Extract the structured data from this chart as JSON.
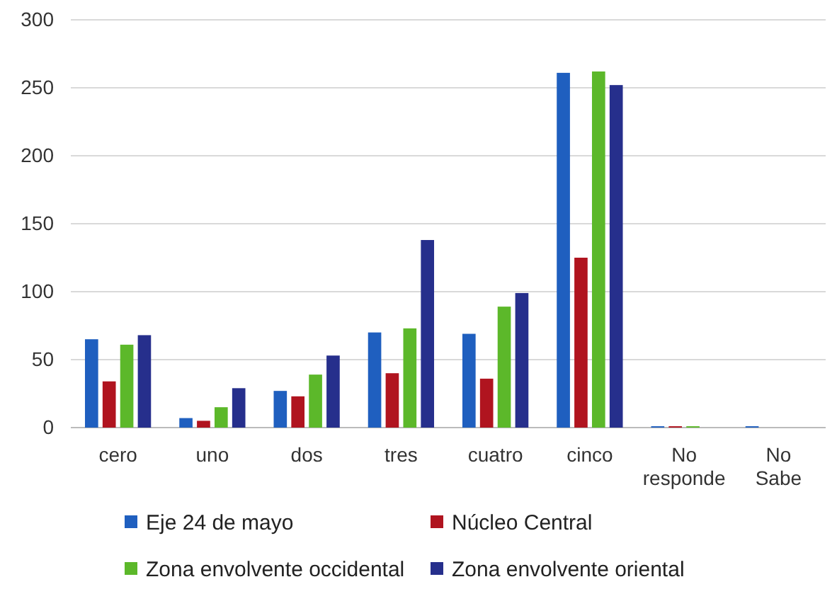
{
  "chart_data": {
    "type": "bar",
    "categories": [
      "cero",
      "uno",
      "dos",
      "tres",
      "cuatro",
      "cinco",
      "No responde",
      "No Sabe"
    ],
    "series": [
      {
        "name": "Eje 24 de mayo",
        "color": "#1f5fbf",
        "values": [
          65,
          7,
          27,
          70,
          69,
          261,
          1,
          1
        ]
      },
      {
        "name": "Núcleo Central",
        "color": "#b0141f",
        "values": [
          34,
          5,
          23,
          40,
          36,
          125,
          1,
          0
        ]
      },
      {
        "name": "Zona envolvente occidental",
        "color": "#5cb82a",
        "values": [
          61,
          15,
          39,
          73,
          89,
          262,
          1,
          0
        ]
      },
      {
        "name": "Zona envolvente oriental",
        "color": "#262f8c",
        "values": [
          68,
          29,
          53,
          138,
          99,
          252,
          0,
          0
        ]
      }
    ],
    "ylim": [
      0,
      300
    ],
    "yticks": [
      0,
      50,
      100,
      150,
      200,
      250,
      300
    ],
    "grid": "y",
    "legend": "bottom"
  }
}
